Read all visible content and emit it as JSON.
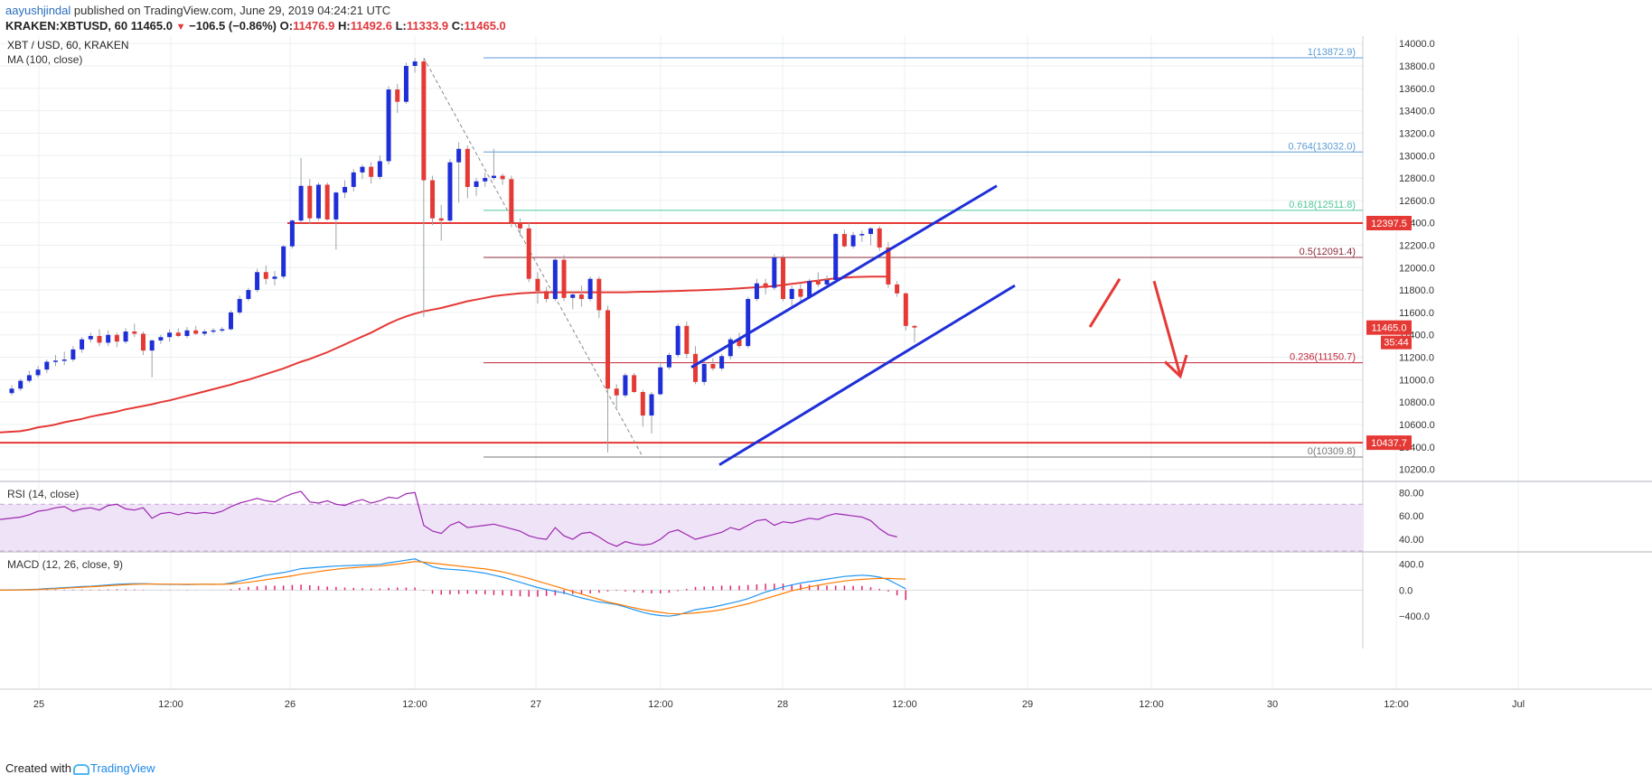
{
  "header": {
    "author": "aayushjindal",
    "published": "published on TradingView.com, June 29, 2019 04:24:21 UTC",
    "symbol_line": "KRAKEN:XBTUSD, 60",
    "last": "11465.0",
    "change_arrow": "▼",
    "change": "−106.5 (−0.86%)",
    "o": "11476.9",
    "h": "11492.6",
    "l": "11333.9",
    "c": "11465.0",
    "o_label": "O:",
    "h_label": "H:",
    "l_label": "L:",
    "c_label": "C:"
  },
  "chart_data": {
    "type": "candlestick",
    "title": "XBT / USD, 60, KRAKEN",
    "subtitle": "MA (100, close)",
    "price_axis": {
      "ylim": [
        10100,
        14050
      ],
      "ticks": [
        "14000.0",
        "13800.0",
        "13600.0",
        "13400.0",
        "13200.0",
        "13000.0",
        "12800.0",
        "12600.0",
        "12400.0",
        "12200.0",
        "12000.0",
        "11800.0",
        "11600.0",
        "11400.0",
        "11200.0",
        "11000.0",
        "10800.0",
        "10600.0",
        "10400.0",
        "10200.0"
      ]
    },
    "time_axis": {
      "labels": [
        "25",
        "12:00",
        "26",
        "12:00",
        "27",
        "12:00",
        "28",
        "12:00",
        "29",
        "12:00",
        "30",
        "12:00",
        "Jul"
      ]
    },
    "candles_ohlc": [
      [
        10880,
        10950,
        10860,
        10920
      ],
      [
        10920,
        11010,
        10900,
        10990
      ],
      [
        10990,
        11080,
        10970,
        11040
      ],
      [
        11040,
        11120,
        11020,
        11090
      ],
      [
        11090,
        11180,
        11060,
        11160
      ],
      [
        11160,
        11220,
        11120,
        11170
      ],
      [
        11170,
        11250,
        11130,
        11180
      ],
      [
        11180,
        11300,
        11160,
        11270
      ],
      [
        11270,
        11380,
        11240,
        11360
      ],
      [
        11360,
        11420,
        11330,
        11390
      ],
      [
        11390,
        11450,
        11300,
        11330
      ],
      [
        11330,
        11440,
        11300,
        11400
      ],
      [
        11400,
        11420,
        11290,
        11340
      ],
      [
        11340,
        11460,
        11320,
        11430
      ],
      [
        11430,
        11500,
        11380,
        11410
      ],
      [
        11410,
        11430,
        11220,
        11260
      ],
      [
        11260,
        11360,
        11020,
        11350
      ],
      [
        11350,
        11400,
        11320,
        11380
      ],
      [
        11380,
        11450,
        11340,
        11420
      ],
      [
        11420,
        11460,
        11380,
        11390
      ],
      [
        11390,
        11470,
        11370,
        11440
      ],
      [
        11440,
        11480,
        11400,
        11410
      ],
      [
        11410,
        11450,
        11390,
        11430
      ],
      [
        11430,
        11460,
        11410,
        11440
      ],
      [
        11440,
        11470,
        11420,
        11450
      ],
      [
        11450,
        11620,
        11440,
        11600
      ],
      [
        11600,
        11750,
        11580,
        11720
      ],
      [
        11720,
        11820,
        11700,
        11800
      ],
      [
        11800,
        11990,
        11780,
        11960
      ],
      [
        11960,
        12020,
        11850,
        11900
      ],
      [
        11900,
        11970,
        11840,
        11920
      ],
      [
        11920,
        12200,
        11900,
        12190
      ],
      [
        12190,
        12430,
        12170,
        12420
      ],
      [
        12420,
        12980,
        12400,
        12730
      ],
      [
        12730,
        12790,
        12390,
        12440
      ],
      [
        12440,
        12760,
        12420,
        12740
      ],
      [
        12740,
        12760,
        12420,
        12430
      ],
      [
        12430,
        12680,
        12160,
        12670
      ],
      [
        12670,
        12780,
        12620,
        12720
      ],
      [
        12720,
        12880,
        12680,
        12850
      ],
      [
        12850,
        12920,
        12790,
        12900
      ],
      [
        12900,
        12940,
        12750,
        12810
      ],
      [
        12810,
        13000,
        12790,
        12950
      ],
      [
        12950,
        13620,
        12920,
        13590
      ],
      [
        13590,
        13640,
        13380,
        13480
      ],
      [
        13480,
        13830,
        13460,
        13800
      ],
      [
        13800,
        13870,
        13740,
        13840
      ],
      [
        13840,
        13860,
        11560,
        12780
      ],
      [
        12780,
        12820,
        12380,
        12440
      ],
      [
        12440,
        12560,
        12240,
        12420
      ],
      [
        12420,
        12970,
        12410,
        12940
      ],
      [
        12940,
        13120,
        12580,
        13060
      ],
      [
        13060,
        13090,
        12620,
        12720
      ],
      [
        12720,
        12800,
        12640,
        12770
      ],
      [
        12770,
        12850,
        12720,
        12800
      ],
      [
        12800,
        13060,
        12780,
        12820
      ],
      [
        12820,
        12840,
        12740,
        12790
      ],
      [
        12790,
        12820,
        12360,
        12400
      ],
      [
        12400,
        12440,
        12280,
        12350
      ],
      [
        12350,
        12400,
        11870,
        11900
      ],
      [
        11900,
        11960,
        11680,
        11790
      ],
      [
        11790,
        11830,
        11690,
        11720
      ],
      [
        11720,
        12090,
        11700,
        12070
      ],
      [
        12070,
        12110,
        11700,
        11730
      ],
      [
        11730,
        11780,
        11630,
        11760
      ],
      [
        11760,
        11840,
        11650,
        11720
      ],
      [
        11720,
        11920,
        11700,
        11900
      ],
      [
        11900,
        11920,
        11550,
        11620
      ],
      [
        11620,
        11660,
        10350,
        10920
      ],
      [
        10920,
        10960,
        10750,
        10860
      ],
      [
        10860,
        11060,
        10840,
        11040
      ],
      [
        11040,
        11060,
        10880,
        10890
      ],
      [
        10890,
        10910,
        10580,
        10680
      ],
      [
        10680,
        10890,
        10520,
        10870
      ],
      [
        10870,
        11160,
        10860,
        11110
      ],
      [
        11110,
        11240,
        11090,
        11220
      ],
      [
        11220,
        11500,
        11200,
        11480
      ],
      [
        11480,
        11520,
        11190,
        11230
      ],
      [
        11230,
        11300,
        10960,
        10980
      ],
      [
        10980,
        11170,
        10950,
        11140
      ],
      [
        11140,
        11190,
        11080,
        11100
      ],
      [
        11100,
        11230,
        11080,
        11210
      ],
      [
        11210,
        11380,
        11180,
        11360
      ],
      [
        11360,
        11420,
        11280,
        11300
      ],
      [
        11300,
        11740,
        11280,
        11720
      ],
      [
        11720,
        11900,
        11700,
        11860
      ],
      [
        11860,
        11900,
        11760,
        11820
      ],
      [
        11820,
        12120,
        11800,
        12090
      ],
      [
        12090,
        12110,
        11700,
        11720
      ],
      [
        11720,
        11840,
        11640,
        11810
      ],
      [
        11810,
        11860,
        11700,
        11740
      ],
      [
        11740,
        11900,
        11720,
        11880
      ],
      [
        11880,
        11960,
        11830,
        11850
      ],
      [
        11850,
        11930,
        11820,
        11890
      ],
      [
        11890,
        12310,
        11860,
        12300
      ],
      [
        12300,
        12340,
        12180,
        12190
      ],
      [
        12190,
        12320,
        12170,
        12290
      ],
      [
        12290,
        12330,
        12230,
        12300
      ],
      [
        12300,
        12360,
        12200,
        12350
      ],
      [
        12350,
        12370,
        12150,
        12180
      ],
      [
        12180,
        12230,
        11820,
        11850
      ],
      [
        11850,
        11880,
        11740,
        11770
      ],
      [
        11770,
        11780,
        11440,
        11480
      ],
      [
        11480,
        11490,
        11330,
        11465
      ]
    ],
    "moving_average": {
      "name": "MA (100, close)",
      "values": [
        10530,
        10540,
        10555,
        10575,
        10585,
        10600,
        10620,
        10635,
        10650,
        10670,
        10685,
        10700,
        10715,
        10735,
        10750,
        10765,
        10780,
        10800,
        10815,
        10835,
        10855,
        10875,
        10895,
        10915,
        10935,
        10955,
        10980,
        11000,
        11025,
        11050,
        11075,
        11100,
        11130,
        11160,
        11185,
        11215,
        11245,
        11280,
        11315,
        11350,
        11385,
        11420,
        11460,
        11500,
        11535,
        11565,
        11590,
        11610,
        11625,
        11640,
        11660,
        11680,
        11700,
        11715,
        11730,
        11745,
        11755,
        11763,
        11770,
        11775,
        11778,
        11780,
        11780,
        11780,
        11780,
        11780,
        11780,
        11780,
        11780,
        11780,
        11780,
        11782,
        11785,
        11785,
        11788,
        11790,
        11792,
        11795,
        11797,
        11800,
        11803,
        11806,
        11810,
        11815,
        11820,
        11825,
        11830,
        11835,
        11845,
        11855,
        11865,
        11875,
        11885,
        11895,
        11905,
        11910,
        11915,
        11918,
        11920,
        11920,
        11920
      ]
    },
    "fibonacci": [
      {
        "label": "1(13872.9)",
        "price": 13872.9
      },
      {
        "label": "0.764(13032.0)",
        "price": 13032.0
      },
      {
        "label": "0.618(12511.8)",
        "price": 12511.8
      },
      {
        "label": "0.5(12091.4)",
        "price": 12091.4
      },
      {
        "label": "0.236(11150.7)",
        "price": 11150.7
      },
      {
        "label": "0(10309.8)",
        "price": 10309.8
      }
    ],
    "horizontal_levels": [
      {
        "label": "12397.5",
        "price": 12397.5
      },
      {
        "label": "10437.7",
        "price": 10437.7
      }
    ],
    "price_tags": {
      "last": "11465.0",
      "countdown": "35:44"
    },
    "channel": {
      "upper": [
        [
          11110,
          0.14
        ],
        [
          12730,
          0.41
        ]
      ],
      "lower": [
        [
          10240,
          0.18
        ],
        [
          11840,
          0.51
        ]
      ]
    },
    "rsi": {
      "title": "RSI (14, close)",
      "ticks": [
        "80.00",
        "60.00",
        "40.00"
      ],
      "ylim": [
        30,
        88
      ],
      "upper_band": 70,
      "lower_band": 30,
      "values": [
        57,
        59,
        61,
        64,
        65,
        67,
        68,
        64,
        66,
        67,
        65,
        69,
        70,
        66,
        65,
        67,
        58,
        62,
        63,
        61,
        63,
        62,
        63,
        62,
        64,
        68,
        71,
        73,
        75,
        73,
        72,
        76,
        79,
        81,
        72,
        71,
        73,
        70,
        69,
        72,
        74,
        71,
        73,
        76,
        75,
        79,
        80,
        52,
        47,
        45,
        52,
        55,
        50,
        51,
        52,
        53,
        51,
        49,
        47,
        43,
        41,
        40,
        50,
        43,
        40,
        45,
        46,
        42,
        37,
        34,
        38,
        36,
        35,
        36,
        40,
        46,
        48,
        44,
        40,
        42,
        44,
        46,
        50,
        48,
        52,
        56,
        57,
        52,
        55,
        54,
        56,
        58,
        57,
        60,
        62,
        61,
        60,
        59,
        56,
        49,
        44,
        42
      ]
    },
    "macd": {
      "title": "MACD (12, 26, close, 9)",
      "ticks": [
        "400.0",
        "0.0",
        "−400.0"
      ],
      "ylim": [
        -480,
        560
      ],
      "macd_line": [
        0,
        5,
        10,
        15,
        25,
        30,
        38,
        45,
        55,
        60,
        70,
        80,
        90,
        95,
        100,
        100,
        95,
        90,
        88,
        88,
        85,
        88,
        90,
        88,
        92,
        110,
        140,
        170,
        200,
        230,
        250,
        270,
        300,
        330,
        340,
        350,
        360,
        370,
        375,
        380,
        385,
        390,
        395,
        420,
        440,
        460,
        480,
        420,
        360,
        330,
        320,
        310,
        300,
        280,
        260,
        230,
        200,
        160,
        120,
        80,
        40,
        10,
        -20,
        -40,
        -80,
        -120,
        -150,
        -180,
        -200,
        -220,
        -260,
        -300,
        -340,
        -370,
        -390,
        -400,
        -380,
        -340,
        -300,
        -280,
        -260,
        -230,
        -200,
        -170,
        -130,
        -80,
        -30,
        10,
        50,
        80,
        110,
        130,
        150,
        170,
        190,
        210,
        220,
        230,
        220,
        200,
        160,
        90,
        20
      ],
      "signal_line": [
        0,
        3,
        6,
        10,
        16,
        22,
        30,
        37,
        45,
        52,
        60,
        68,
        76,
        83,
        90,
        93,
        94,
        93,
        92,
        91,
        90,
        90,
        90,
        90,
        90,
        95,
        105,
        120,
        140,
        160,
        180,
        200,
        220,
        245,
        265,
        285,
        305,
        320,
        335,
        345,
        355,
        365,
        370,
        385,
        400,
        420,
        440,
        430,
        415,
        400,
        385,
        370,
        355,
        340,
        325,
        305,
        280,
        250,
        215,
        180,
        140,
        100,
        60,
        20,
        -20,
        -60,
        -100,
        -140,
        -180,
        -210,
        -240,
        -270,
        -300,
        -320,
        -340,
        -360,
        -365,
        -360,
        -350,
        -335,
        -320,
        -300,
        -270,
        -240,
        -210,
        -170,
        -130,
        -90,
        -50,
        -10,
        20,
        50,
        75,
        100,
        120,
        140,
        155,
        165,
        175,
        180,
        180,
        175,
        170
      ],
      "histogram": [
        0,
        2,
        4,
        5,
        9,
        8,
        8,
        8,
        10,
        8,
        10,
        12,
        14,
        12,
        10,
        7,
        1,
        -3,
        -4,
        -3,
        -5,
        -2,
        0,
        -2,
        2,
        15,
        35,
        50,
        60,
        70,
        70,
        70,
        80,
        85,
        75,
        65,
        55,
        50,
        40,
        35,
        30,
        25,
        25,
        35,
        40,
        40,
        40,
        -10,
        -55,
        -70,
        -65,
        -60,
        -55,
        -60,
        -65,
        -75,
        -80,
        -90,
        -95,
        -100,
        -100,
        -90,
        -80,
        -60,
        -60,
        -60,
        -50,
        -40,
        -20,
        -10,
        -20,
        -30,
        -40,
        -50,
        -50,
        -40,
        -15,
        20,
        50,
        55,
        60,
        70,
        70,
        70,
        80,
        90,
        100,
        100,
        100,
        90,
        90,
        80,
        75,
        70,
        70,
        70,
        65,
        65,
        45,
        20,
        -20,
        -80,
        -150
      ]
    }
  }
}
